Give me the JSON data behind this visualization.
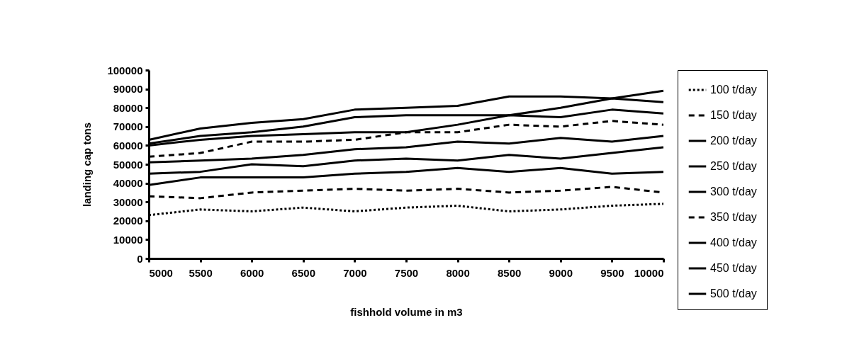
{
  "chart_data": {
    "type": "line",
    "xlabel": "fishhold volume in m3",
    "ylabel": "landing cap tons",
    "x": [
      5000,
      5500,
      6000,
      6500,
      7000,
      7500,
      8000,
      8500,
      9000,
      9500,
      10000
    ],
    "xlim": [
      5000,
      10000
    ],
    "xticks": [
      5000,
      5500,
      6000,
      6500,
      7000,
      7500,
      8000,
      8500,
      9000,
      9500,
      10000
    ],
    "ylim": [
      0,
      100000
    ],
    "yticks": [
      0,
      10000,
      20000,
      30000,
      40000,
      50000,
      60000,
      70000,
      80000,
      90000,
      100000
    ],
    "grid": false,
    "legend": "right",
    "marker": "none",
    "series": [
      {
        "name": "100 t/day",
        "color": "#000000",
        "line_style": "dotted",
        "values": [
          23000,
          26000,
          25000,
          27000,
          25000,
          27000,
          28000,
          25000,
          26000,
          28000,
          29000
        ]
      },
      {
        "name": "150 t/day",
        "color": "#000000",
        "line_style": "dashed",
        "values": [
          33000,
          32000,
          35000,
          36000,
          37000,
          36000,
          37000,
          35000,
          36000,
          38000,
          35000
        ]
      },
      {
        "name": "200 t/day",
        "color": "#000000",
        "line_style": "solid",
        "values": [
          39000,
          43000,
          43000,
          43000,
          45000,
          46000,
          48000,
          46000,
          48000,
          45000,
          46000
        ]
      },
      {
        "name": "250 t/day",
        "color": "#000000",
        "line_style": "solid",
        "values": [
          45000,
          46000,
          50000,
          49000,
          52000,
          53000,
          52000,
          55000,
          53000,
          56000,
          59000
        ]
      },
      {
        "name": "300 t/day",
        "color": "#000000",
        "line_style": "solid",
        "values": [
          51000,
          52000,
          53000,
          55000,
          58000,
          59000,
          62000,
          61000,
          64000,
          62000,
          65000
        ]
      },
      {
        "name": "350 t/day",
        "color": "#000000",
        "line_style": "dashed",
        "values": [
          54000,
          56000,
          62000,
          62000,
          63000,
          67000,
          67000,
          71000,
          70000,
          73000,
          71000
        ]
      },
      {
        "name": "400 t/day",
        "color": "#000000",
        "line_style": "solid",
        "values": [
          60000,
          63000,
          65000,
          66000,
          67000,
          67000,
          71000,
          76000,
          75000,
          79000,
          77000
        ]
      },
      {
        "name": "450 t/day",
        "color": "#000000",
        "line_style": "solid",
        "values": [
          61000,
          65000,
          67000,
          70000,
          75000,
          76000,
          76000,
          76000,
          80000,
          85000,
          83000
        ]
      },
      {
        "name": "500 t/day",
        "color": "#000000",
        "line_style": "solid",
        "values": [
          63000,
          69000,
          72000,
          74000,
          79000,
          80000,
          81000,
          86000,
          86000,
          85000,
          89000
        ]
      }
    ]
  }
}
